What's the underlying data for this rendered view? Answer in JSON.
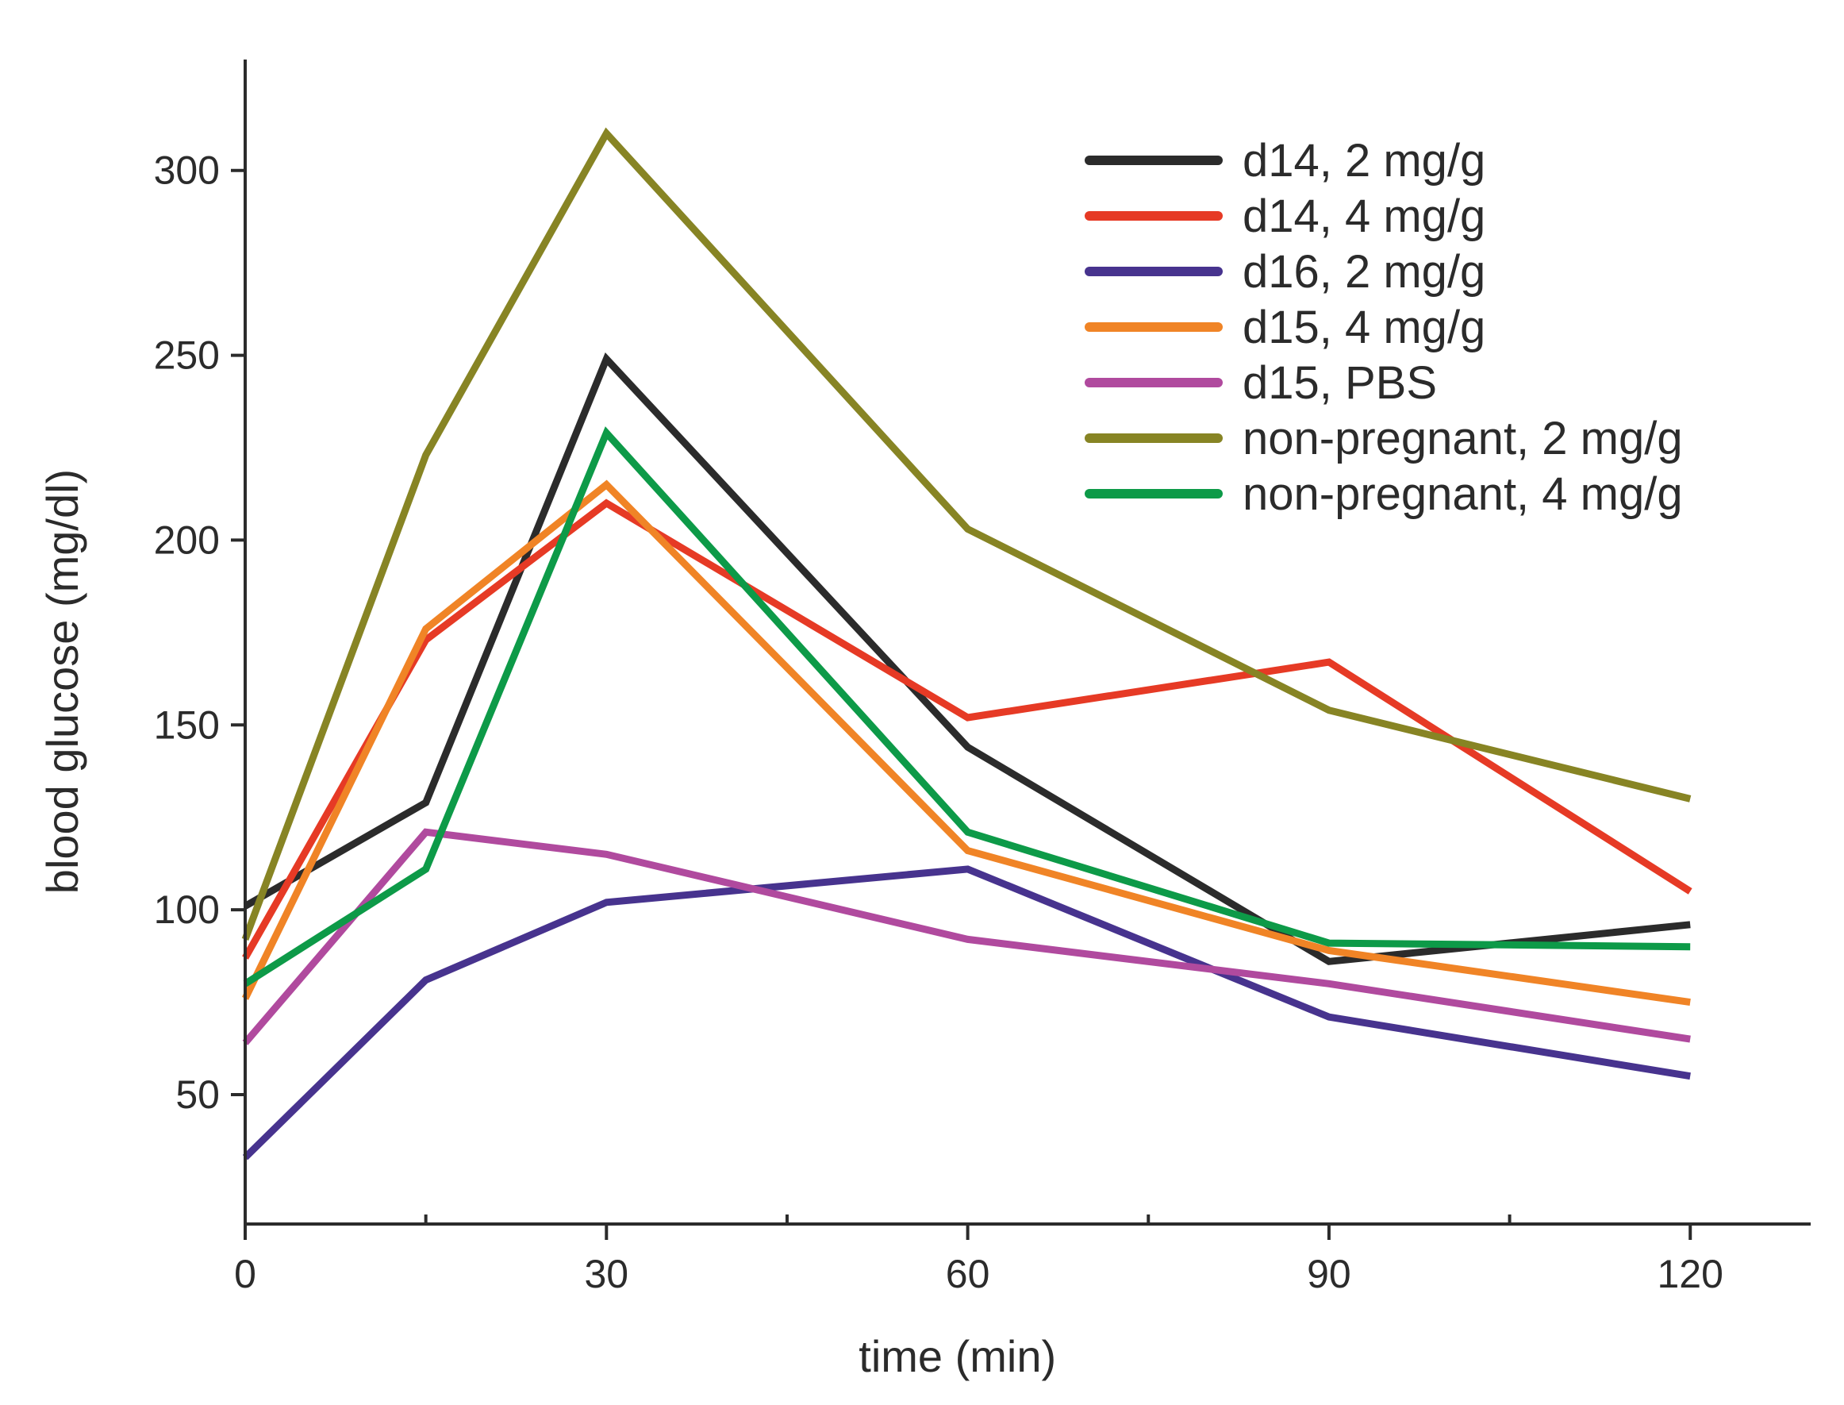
{
  "chart_data": {
    "type": "line",
    "title": "",
    "xlabel": "time (min)",
    "ylabel": "blood glucose (mg/dl)",
    "xlim": [
      0,
      130
    ],
    "ylim": [
      15,
      330
    ],
    "xticks": [
      0,
      30,
      60,
      90,
      120
    ],
    "xticks_minor": [
      15,
      45,
      75,
      105
    ],
    "yticks": [
      50,
      100,
      150,
      200,
      250,
      300
    ],
    "x": [
      0,
      15,
      30,
      60,
      90,
      120
    ],
    "legend_position": "top-right",
    "series": [
      {
        "name": "d14, 2 mg/g",
        "color": "#2b2b2b",
        "values": [
          101,
          129,
          249,
          144,
          86,
          96
        ]
      },
      {
        "name": "d14, 4 mg/g",
        "color": "#e63a25",
        "values": [
          87,
          173,
          210,
          152,
          167,
          105
        ]
      },
      {
        "name": "d16, 2 mg/g",
        "color": "#47338e",
        "values": [
          33,
          81,
          102,
          111,
          71,
          55
        ]
      },
      {
        "name": "d15, 4 mg/g",
        "color": "#f08426",
        "values": [
          76,
          176,
          215,
          116,
          89,
          75
        ]
      },
      {
        "name": "d15, PBS",
        "color": "#b04a9e",
        "values": [
          64,
          121,
          115,
          92,
          80,
          65
        ]
      },
      {
        "name": "non-pregnant, 2 mg/g",
        "color": "#878424",
        "values": [
          92,
          223,
          310,
          203,
          154,
          130
        ]
      },
      {
        "name": "non-pregnant, 4 mg/g",
        "color": "#0d9a48",
        "values": [
          80,
          111,
          229,
          121,
          91,
          90
        ]
      }
    ]
  }
}
